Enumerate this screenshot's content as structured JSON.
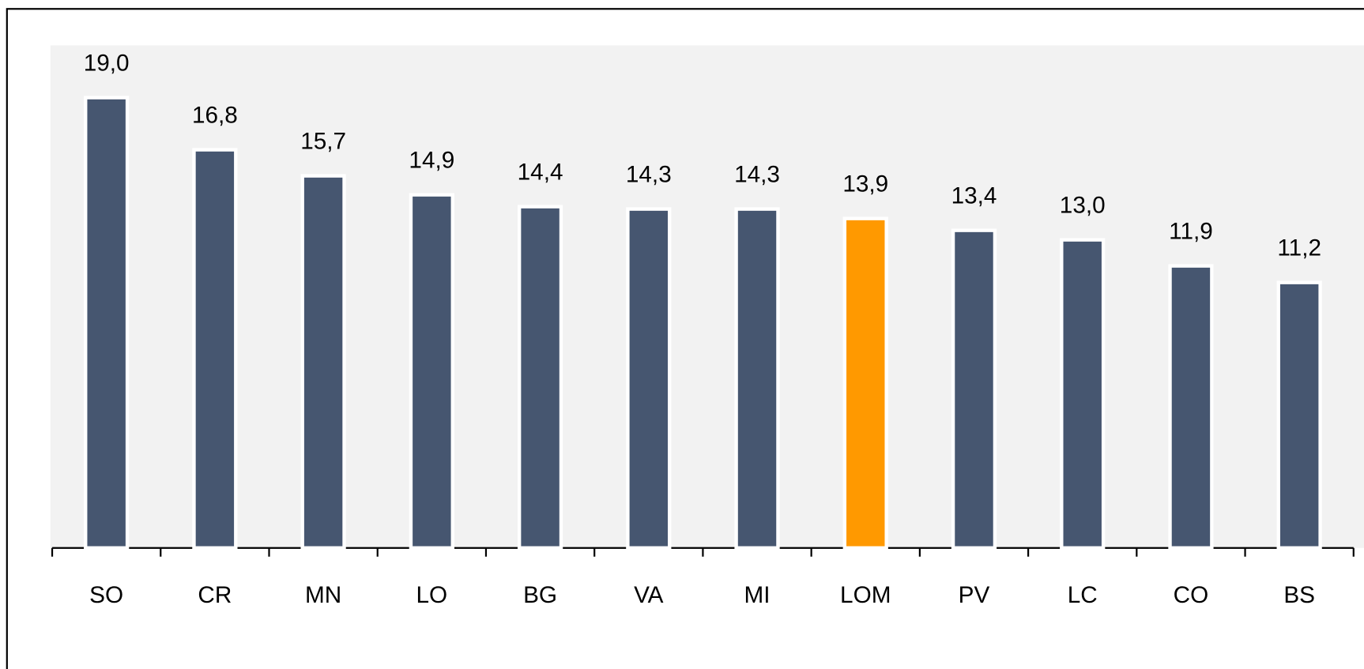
{
  "chart_data": {
    "type": "bar",
    "categories": [
      "SO",
      "CR",
      "MN",
      "LO",
      "BG",
      "VA",
      "MI",
      "LOM",
      "PV",
      "LC",
      "CO",
      "BS"
    ],
    "values": [
      19.0,
      16.8,
      15.7,
      14.9,
      14.4,
      14.3,
      14.3,
      13.9,
      13.4,
      13.0,
      11.9,
      11.2
    ],
    "value_labels": [
      "19,0",
      "16,8",
      "15,7",
      "14,9",
      "14,4",
      "14,3",
      "14,3",
      "13,9",
      "13,4",
      "13,0",
      "11,9",
      "11,2"
    ],
    "colors": [
      "#465670",
      "#465670",
      "#465670",
      "#465670",
      "#465670",
      "#465670",
      "#465670",
      "#ff9900",
      "#465670",
      "#465670",
      "#465670",
      "#465670"
    ]
  }
}
